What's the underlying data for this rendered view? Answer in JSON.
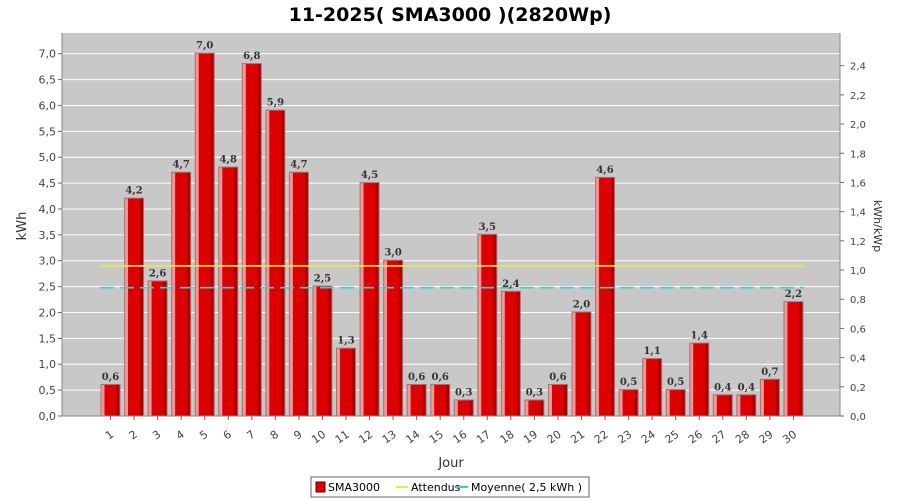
{
  "chart_data": {
    "type": "bar",
    "title": "11-2025( SMA3000 )(2820Wp)",
    "xlabel": "Jour",
    "ylabel": "kWh",
    "y2label": "kWh/kWp",
    "categories": [
      "1",
      "2",
      "3",
      "4",
      "5",
      "6",
      "7",
      "8",
      "9",
      "10",
      "11",
      "12",
      "13",
      "14",
      "15",
      "16",
      "17",
      "18",
      "19",
      "20",
      "21",
      "22",
      "23",
      "24",
      "25",
      "26",
      "27",
      "28",
      "29",
      "30"
    ],
    "series": [
      {
        "name": "SMA3000",
        "color": "#dd0000",
        "values": [
          0.6,
          4.2,
          2.6,
          4.7,
          7.0,
          4.8,
          6.8,
          5.9,
          4.7,
          2.5,
          1.3,
          4.5,
          3.0,
          0.6,
          0.6,
          0.3,
          3.5,
          2.4,
          0.3,
          0.6,
          2.0,
          4.6,
          0.5,
          1.1,
          0.5,
          1.4,
          0.4,
          0.4,
          0.7,
          2.2
        ],
        "labels": [
          "0,6",
          "4,2",
          "2,6",
          "4,7",
          "7,0",
          "4,8",
          "6,8",
          "5,9",
          "4,7",
          "2,5",
          "1,3",
          "4,5",
          "3,0",
          "0,6",
          "0,6",
          "0,3",
          "3,5",
          "2,4",
          "0,3",
          "0,6",
          "2,0",
          "4,6",
          "0,5",
          "1,1",
          "0,5",
          "1,4",
          "0,4",
          "0,4",
          "0,7",
          "2,2"
        ]
      }
    ],
    "lines": [
      {
        "name": "Attendus",
        "value": 2.9,
        "color": "#e8e84a",
        "style": "solid"
      },
      {
        "name": "Moyenne( 2,5 kWh )",
        "value": 2.48,
        "color": "#44cccc",
        "style": "dashed"
      }
    ],
    "ylim": [
      0,
      7.4
    ],
    "yticks": [
      "0,0",
      "0,5",
      "1,0",
      "1,5",
      "2,0",
      "2,5",
      "3,0",
      "3,5",
      "4,0",
      "4,5",
      "5,0",
      "5,5",
      "6,0",
      "6,5",
      "7,0"
    ],
    "y2lim": [
      0,
      2.624
    ],
    "y2ticks": [
      "0,0",
      "0,2",
      "0,4",
      "0,6",
      "0,8",
      "1,0",
      "1,2",
      "1,4",
      "1,6",
      "1,8",
      "2,0",
      "2,2",
      "2,4"
    ],
    "grid": true,
    "legend_position": "bottom-center"
  }
}
